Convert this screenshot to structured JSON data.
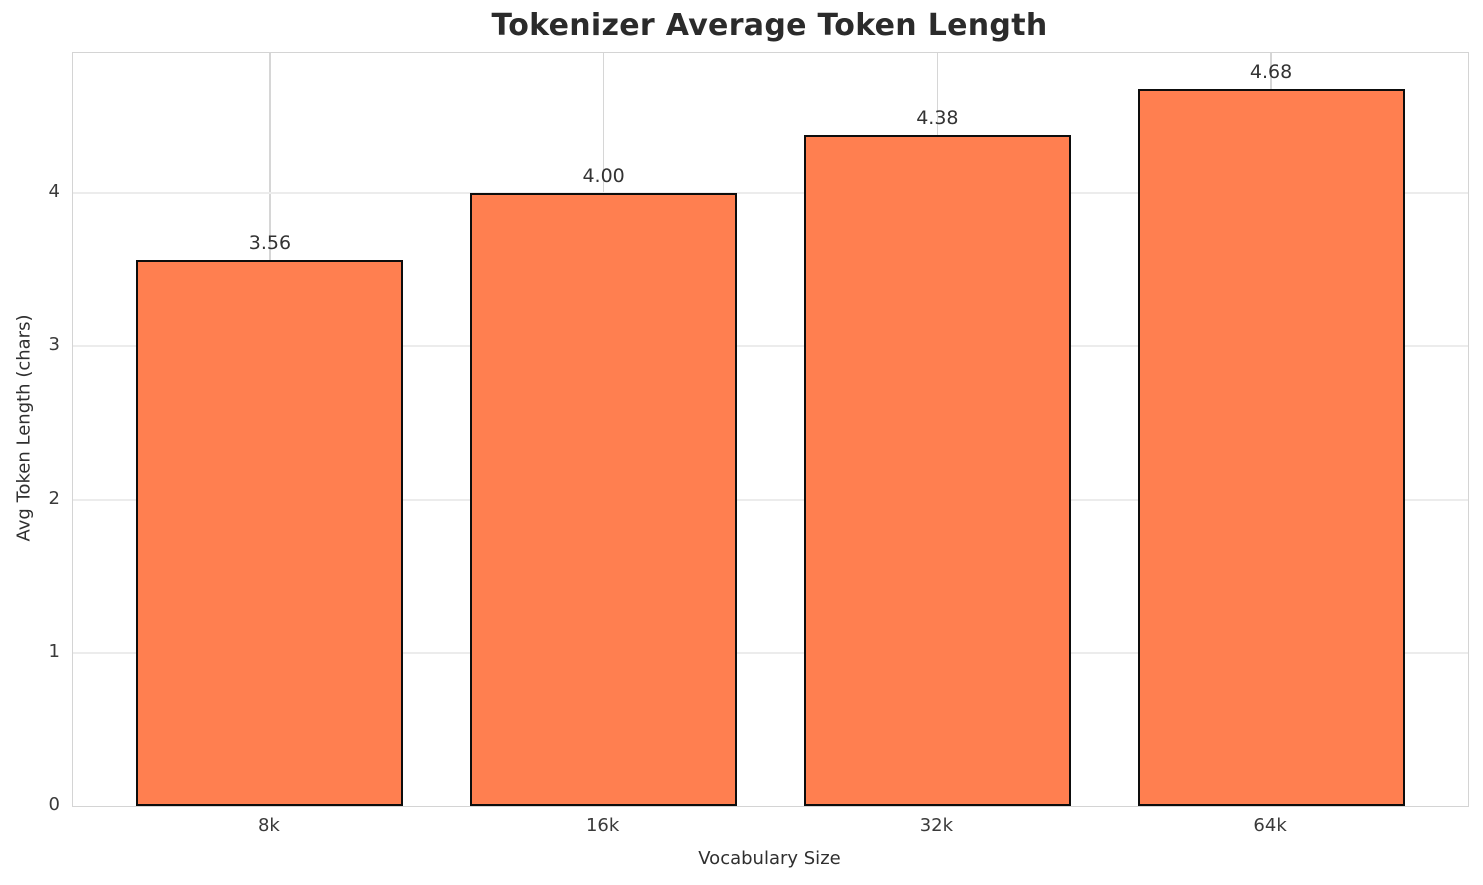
{
  "chart_data": {
    "type": "bar",
    "title": "Tokenizer Average Token Length",
    "xlabel": "Vocabulary Size",
    "ylabel": "Avg Token Length (chars)",
    "categories": [
      "8k",
      "16k",
      "32k",
      "64k"
    ],
    "values": [
      3.56,
      4.0,
      4.38,
      4.68
    ],
    "value_labels": [
      "3.56",
      "4.00",
      "4.38",
      "4.68"
    ],
    "yticks": [
      0,
      1,
      2,
      3,
      4
    ],
    "ylim": [
      0,
      4.914
    ],
    "grid": "both",
    "legend": "none",
    "bar_color": "#ff7f50",
    "bar_edge_color": "#0d0d0d",
    "hgrid_color": "#ececec",
    "vgrid_color": "#d6d6d6",
    "spine_color": "#d4d4d4",
    "tick_text_color": "#3a3a3a",
    "label_text_color": "#2f2f2f",
    "title_color": "#2b2b2b"
  }
}
